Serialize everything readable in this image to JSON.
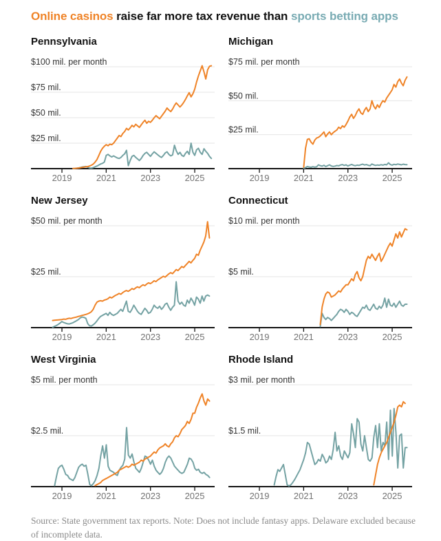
{
  "header": {
    "title_casino": "Online casinos",
    "title_middle": " raise far more tax revenue than ",
    "title_sports": "sports betting apps"
  },
  "footer": {
    "text": "Source: State government tax reports.  Note: Does not include fantasy apps. Delaware excluded because of incomplete data."
  },
  "chart_data": {
    "type": "line",
    "title": "Online casinos raise far more tax revenue than sports betting apps",
    "units": "$ millions per month",
    "legend": [
      {
        "name": "Online casinos",
        "color": "#ef8327"
      },
      {
        "name": "Sports betting apps",
        "color": "#74a2a3"
      }
    ],
    "x_domain": [
      2017.6,
      2025.9
    ],
    "x_ticks": [
      2019,
      2021,
      2023,
      2025
    ],
    "grid_on": true,
    "colors": {
      "casino": "#ef8327",
      "sports": "#74a2a3",
      "grid": "#e4e4e4",
      "axis": "#121212",
      "grid_label": "#333333",
      "tick_label": "#737373"
    },
    "panels": [
      {
        "state": "Pennsylvania",
        "y_top": 100,
        "gridlines": [
          {
            "value": 100,
            "label": "$100 mil. per month"
          },
          {
            "value": 75,
            "label": "$75 mil."
          },
          {
            "value": 50,
            "label": "$50 mil."
          },
          {
            "value": 25,
            "label": "$25 mil."
          }
        ],
        "casino": {
          "start_year": 2019.5,
          "values": [
            0.2,
            0.3,
            0.4,
            0.6,
            0.9,
            1.2,
            1.5,
            1.8,
            2.0,
            2.6,
            3.4,
            4.5,
            6.5,
            9,
            13,
            17,
            20,
            22,
            23.5,
            22.5,
            24,
            23.5,
            25,
            27.5,
            30,
            32.5,
            31.5,
            34.5,
            36.5,
            39.5,
            38,
            40,
            42.5,
            41,
            43.5,
            42,
            40.5,
            43,
            45.5,
            47.5,
            44.5,
            46.5,
            45.5,
            47.5,
            50,
            52,
            50.5,
            49,
            51.5,
            54,
            56.5,
            59.5,
            57.5,
            56,
            58.5,
            62,
            64.5,
            62.5,
            60.5,
            62.5,
            65,
            68,
            71.5,
            74.5,
            70.5,
            73.5,
            78,
            85,
            91,
            96,
            101,
            95,
            88,
            97,
            100.5,
            101
          ]
        },
        "sports": {
          "start_year": 2019.5,
          "values": [
            0.1,
            0.2,
            0.4,
            0.7,
            1.1,
            1.6,
            1.9,
            2.1,
            1.4,
            0.6,
            0.5,
            1.0,
            1.8,
            2.6,
            3.6,
            4.6,
            5.2,
            6.5,
            13,
            14,
            12.5,
            11.5,
            12.5,
            11.5,
            10.5,
            10,
            11,
            13,
            14.5,
            18,
            3,
            8,
            12,
            13,
            11,
            9.5,
            8,
            10,
            13,
            15,
            16,
            14,
            12,
            14.5,
            16.5,
            15,
            13.5,
            12,
            11,
            13,
            15.5,
            16.5,
            14,
            12.5,
            13.5,
            23,
            17.5,
            14,
            16,
            13,
            12,
            15,
            17,
            14,
            25,
            16,
            13,
            18.5,
            20,
            16,
            14,
            19.5,
            17,
            15,
            12,
            10
          ]
        }
      },
      {
        "state": "Michigan",
        "y_top": 75,
        "gridlines": [
          {
            "value": 75,
            "label": "$75 mil. per month"
          },
          {
            "value": 50,
            "label": "$50 mil."
          },
          {
            "value": 25,
            "label": "$25 mil."
          }
        ],
        "casino": {
          "start_year": 2021.0,
          "values": [
            1,
            15,
            21.5,
            22,
            19.5,
            18,
            21,
            22.5,
            23,
            24,
            25.5,
            27,
            23.5,
            25.5,
            27,
            25,
            26.5,
            27.5,
            28.5,
            30.5,
            29.5,
            31.5,
            30.5,
            32.5,
            35,
            38,
            40,
            37,
            39,
            42,
            44,
            41,
            40,
            43,
            45,
            42,
            44,
            50,
            46,
            44,
            47,
            45,
            48,
            50,
            49,
            52,
            54,
            56,
            58,
            62,
            60,
            64,
            66,
            63,
            61,
            65,
            67.5
          ]
        },
        "sports": {
          "start_year": 2021.0,
          "values": [
            0.3,
            0.8,
            1.5,
            1.2,
            1.0,
            1.4,
            1.1,
            1.3,
            2.8,
            2.2,
            1.8,
            2.5,
            1.5,
            2.2,
            2.8,
            2.0,
            1.6,
            1.9,
            2.3,
            2.1,
            2.7,
            3.0,
            2.4,
            2.8,
            2.0,
            2.6,
            3.1,
            2.5,
            2.2,
            2.6,
            2.4,
            2.9,
            3.3,
            2.7,
            3.0,
            2.5,
            2.2,
            3.4,
            2.8,
            2.4,
            2.7,
            2.5,
            2.9,
            2.6,
            3.1,
            2.8,
            4.3,
            3.0,
            2.6,
            3.2,
            2.9,
            3.4,
            3.1,
            2.8,
            3.3,
            3.0,
            2.9
          ]
        }
      },
      {
        "state": "New Jersey",
        "y_top": 50,
        "gridlines": [
          {
            "value": 50,
            "label": "$50 mil. per month"
          },
          {
            "value": 25,
            "label": "$25 mil."
          }
        ],
        "casino": {
          "start_year": 2018.58,
          "values": [
            3.5,
            3.6,
            3.7,
            3.8,
            3.9,
            4.0,
            4.2,
            4.1,
            4.4,
            4.6,
            4.5,
            4.8,
            5.0,
            5.2,
            5.5,
            5.7,
            6.0,
            6.2,
            6.5,
            6.8,
            7.2,
            7.8,
            9.0,
            11.0,
            12.5,
            13.0,
            13.2,
            13.0,
            13.5,
            13.8,
            14.2,
            15.0,
            14.6,
            15.2,
            15.8,
            16.2,
            16.8,
            16.4,
            17.2,
            17.8,
            18.2,
            17.8,
            18.4,
            19.2,
            18.8,
            19.5,
            20.0,
            19.6,
            20.4,
            21.0,
            20.6,
            21.4,
            22.0,
            21.6,
            22.2,
            23.0,
            22.6,
            23.4,
            24.0,
            24.6,
            25.2,
            24.8,
            25.6,
            26.4,
            27.0,
            26.5,
            27.5,
            28.5,
            28.0,
            29.0,
            30.0,
            29.5,
            30.5,
            31.5,
            32.5,
            31.8,
            33.0,
            34,
            36,
            35.5,
            38,
            40,
            42,
            45,
            52,
            44
          ]
        },
        "sports": {
          "start_year": 2018.58,
          "values": [
            0.2,
            0.6,
            1.0,
            1.6,
            2.2,
            3.0,
            2.5,
            2.2,
            1.9,
            1.8,
            2.1,
            2.4,
            2.9,
            3.4,
            4.0,
            4.8,
            5.2,
            5.0,
            4.6,
            2.0,
            0.9,
            0.8,
            1.4,
            2.2,
            3.3,
            4.5,
            5.5,
            6.0,
            6.5,
            7.0,
            6.0,
            7.5,
            6.5,
            6.0,
            6.5,
            7.0,
            8.0,
            9.0,
            8.0,
            10.5,
            13.0,
            8.0,
            7.5,
            9.0,
            11.0,
            9.5,
            8.0,
            7.0,
            6.5,
            8.0,
            9.5,
            8.5,
            7.0,
            7.5,
            9.0,
            11.0,
            10.0,
            9.5,
            10.5,
            9.0,
            10.0,
            11.5,
            12.0,
            10.0,
            8.5,
            10,
            11,
            22.5,
            13,
            11.5,
            12.5,
            11,
            10.5,
            13.5,
            12,
            14.5,
            13,
            11,
            15,
            14,
            12,
            15.5,
            13,
            15.5,
            16,
            15.5
          ]
        }
      },
      {
        "state": "Connecticut",
        "y_top": 10,
        "gridlines": [
          {
            "value": 10,
            "label": "$10 mil. per month"
          },
          {
            "value": 5,
            "label": "$5 mil."
          }
        ],
        "casino": {
          "start_year": 2021.75,
          "values": [
            0.3,
            2.0,
            2.8,
            3.3,
            3.5,
            3.4,
            3.0,
            3.1,
            3.2,
            3.4,
            3.6,
            3.5,
            3.8,
            4.0,
            4.2,
            4.2,
            4.5,
            4.8,
            4.6,
            5.2,
            5.5,
            4.9,
            4.6,
            5.0,
            5.8,
            6.6,
            7.0,
            6.8,
            7.2,
            6.9,
            6.6,
            7.0,
            7.3,
            6.5,
            6.8,
            7.2,
            7.6,
            8.0,
            8.3,
            8.0,
            8.6,
            9.2,
            8.8,
            9.4,
            8.9,
            9.3,
            9.7,
            9.6
          ]
        },
        "sports": {
          "start_year": 2021.75,
          "values": [
            0.1,
            1.4,
            1.0,
            0.8,
            1.0,
            0.9,
            0.7,
            0.9,
            1.1,
            1.3,
            1.6,
            1.8,
            1.7,
            1.5,
            1.8,
            1.6,
            1.3,
            1.5,
            1.4,
            1.2,
            1.1,
            1.4,
            1.7,
            2.0,
            1.9,
            2.2,
            1.8,
            1.7,
            2.0,
            2.3,
            1.9,
            1.8,
            2.1,
            1.9,
            2.2,
            2.9,
            2.0,
            2.8,
            2.2,
            2.1,
            2.4,
            2.0,
            2.3,
            2.6,
            2.2,
            2.1,
            2.3,
            2.3
          ]
        }
      },
      {
        "state": "West Virginia",
        "y_top": 5,
        "gridlines": [
          {
            "value": 5,
            "label": "$5 mil. per month"
          },
          {
            "value": 2.5,
            "label": "$2.5 mil."
          }
        ],
        "casino": {
          "start_year": 2020.5,
          "values": [
            0.05,
            0.1,
            0.15,
            0.2,
            0.3,
            0.35,
            0.4,
            0.45,
            0.5,
            0.55,
            0.6,
            0.65,
            0.7,
            0.8,
            0.85,
            0.9,
            0.95,
            1.0,
            0.95,
            1.0,
            1.1,
            1.05,
            1.1,
            1.15,
            1.2,
            1.3,
            1.25,
            1.35,
            1.4,
            1.45,
            1.5,
            1.6,
            1.7,
            1.65,
            1.8,
            1.9,
            1.95,
            2.0,
            2.1,
            2.0,
            1.95,
            2.1,
            2.2,
            2.4,
            2.5,
            2.45,
            2.6,
            2.8,
            2.9,
            3.0,
            3.2,
            3.1,
            3.3,
            3.6,
            3.6,
            3.9,
            4.1,
            4.35,
            4.55,
            4.2,
            4.0,
            4.3,
            4.2
          ]
        },
        "sports": {
          "start_year": 2018.67,
          "values": [
            0.05,
            0.5,
            0.9,
            1.0,
            1.05,
            0.85,
            0.6,
            0.55,
            0.4,
            0.35,
            0.3,
            0.45,
            0.7,
            0.95,
            1.05,
            1.1,
            1.0,
            1.05,
            0.6,
            0.1,
            0.05,
            0.15,
            0.3,
            0.55,
            0.9,
            1.5,
            2.0,
            1.4,
            2.05,
            1.0,
            0.8,
            0.75,
            0.7,
            0.6,
            0.55,
            0.8,
            0.95,
            1.05,
            1.35,
            2.9,
            1.55,
            1.4,
            1.6,
            1.2,
            0.9,
            0.8,
            0.7,
            0.9,
            1.2,
            1.5,
            1.45,
            1.3,
            1.1,
            1.3,
            1.0,
            0.8,
            0.7,
            0.6,
            0.7,
            0.9,
            1.2,
            1.4,
            1.5,
            1.4,
            1.2,
            1.0,
            0.9,
            0.8,
            0.7,
            0.65,
            0.7,
            0.9,
            1.1,
            1.4,
            1.35,
            1.2,
            0.9,
            0.8,
            0.85,
            0.7,
            0.65,
            0.7,
            0.6,
            0.55,
            0.45
          ]
        }
      },
      {
        "state": "Rhode Island",
        "y_top": 3,
        "gridlines": [
          {
            "value": 3,
            "label": "$3 mil. per month"
          },
          {
            "value": 1.5,
            "label": "$1.5 mil."
          }
        ],
        "casino": {
          "start_year": 2024.17,
          "values": [
            0.05,
            0.35,
            0.65,
            0.85,
            1.0,
            1.1,
            1.2,
            1.3,
            1.45,
            1.6,
            1.75,
            1.9,
            2.1,
            2.35,
            2.4,
            2.35,
            2.5,
            2.45
          ]
        },
        "sports": {
          "start_year": 2019.67,
          "values": [
            0.05,
            0.3,
            0.5,
            0.45,
            0.55,
            0.65,
            0.35,
            0.05,
            0.02,
            0.05,
            0.12,
            0.2,
            0.3,
            0.4,
            0.5,
            0.65,
            0.8,
            1.0,
            1.3,
            1.25,
            1.05,
            0.85,
            0.65,
            0.7,
            0.8,
            0.75,
            0.95,
            0.85,
            0.7,
            0.75,
            0.9,
            0.8,
            1.1,
            1.6,
            1.05,
            1.2,
            0.9,
            0.8,
            1.05,
            0.95,
            0.85,
            1.0,
            1.85,
            1.55,
            1.15,
            2.0,
            1.9,
            1.25,
            1.05,
            1.5,
            1.15,
            0.8,
            0.75,
            0.85,
            1.45,
            1.8,
            1.15,
            1.85,
            1.05,
            1.3,
            1.2,
            1.9,
            0.8,
            2.25,
            0.9,
            2.3,
            1.6,
            0.55,
            1.5,
            1.55,
            0.55,
            1.15,
            1.15
          ]
        }
      }
    ]
  }
}
